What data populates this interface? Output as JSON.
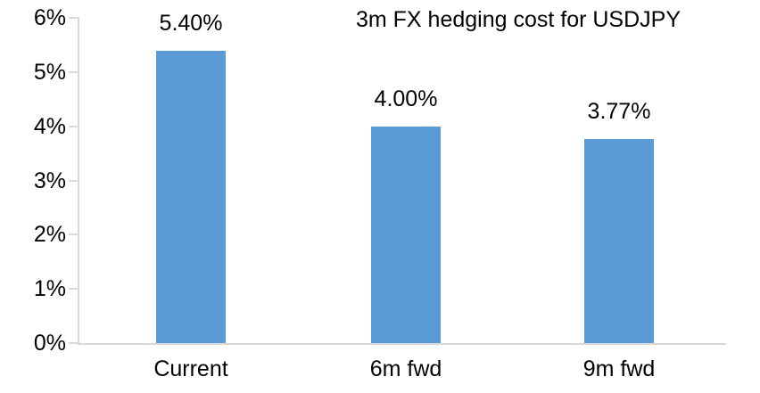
{
  "chart_data": {
    "type": "bar",
    "title": "3m FX hedging cost for USDJPY",
    "categories": [
      "Current",
      "6m fwd",
      "9m fwd"
    ],
    "values": [
      5.4,
      4.0,
      3.77
    ],
    "value_labels": [
      "5.40%",
      "4.00%",
      "3.77%"
    ],
    "ylim": [
      0,
      6
    ],
    "ytick_step": 1,
    "ytick_labels": [
      "0%",
      "1%",
      "2%",
      "3%",
      "4%",
      "5%",
      "6%"
    ],
    "xlabel": "",
    "ylabel": "",
    "grid": false,
    "legend": "none",
    "bar_color": "#5B9BD5",
    "axis_color": "#D9D9D9",
    "text_color": "#000000"
  }
}
